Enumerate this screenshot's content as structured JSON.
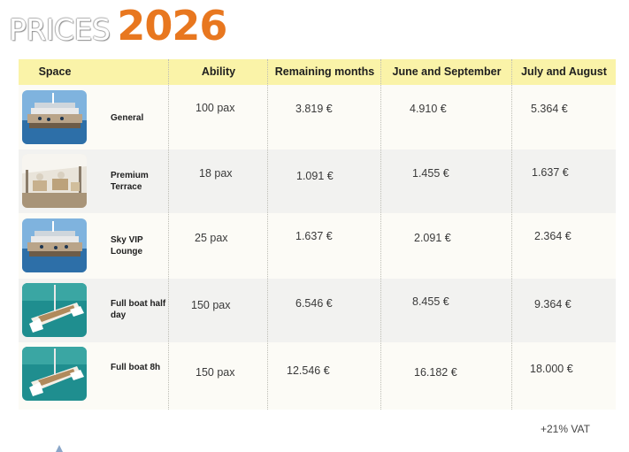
{
  "title": {
    "prefix": "PRICES",
    "year": "2026"
  },
  "headers": {
    "space": "Space",
    "ability": "Ability",
    "remaining": "Remaining months",
    "june_sep": "June and September",
    "jul_aug": "July and August"
  },
  "rows": [
    {
      "name": "General",
      "ability": "100 pax",
      "remaining": "3.819 €",
      "june_sep": "4.910 €",
      "jul_aug": "5.364 €",
      "thumb_icon": "boat-deck-photo"
    },
    {
      "name": "Premium Terrace",
      "ability": "18 pax",
      "remaining": "1.091 €",
      "june_sep": "1.455 €",
      "jul_aug": "1.637 €",
      "thumb_icon": "terrace-photo"
    },
    {
      "name": "Sky VIP Lounge",
      "ability": "25 pax",
      "remaining": "1.637 €",
      "june_sep": "2.091 €",
      "jul_aug": "2.364 €",
      "thumb_icon": "boat-deck-photo"
    },
    {
      "name": "Full boat half day",
      "ability": "150 pax",
      "remaining": "6.546 €",
      "june_sep": "8.455 €",
      "jul_aug": "9.364 €",
      "thumb_icon": "catamaran-photo"
    },
    {
      "name": "Full boat 8h",
      "ability": "150 pax",
      "remaining": "12.546 €",
      "june_sep": "16.182 €",
      "jul_aug": "18.000 €",
      "thumb_icon": "catamaran-photo"
    }
  ],
  "vat_note": "+21% VAT",
  "colors": {
    "accent_orange": "#e8771f",
    "header_yellow": "#faf3a8",
    "row_alt": "#f2f2f0",
    "row_norm": "#fcfbf6"
  }
}
